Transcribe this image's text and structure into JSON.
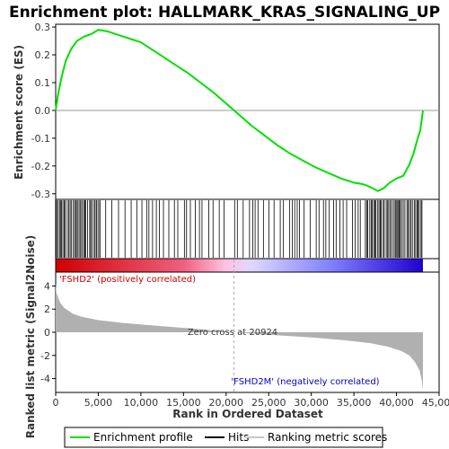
{
  "chart_data": {
    "type": "line",
    "title": "Enrichment plot: HALLMARK_KRAS_SIGNALING_UP",
    "es_panel": {
      "ylabel": "Enrichment score (ES)",
      "ylim": [
        -0.32,
        0.31
      ],
      "yticks": [
        "0.3",
        "0.2",
        "0.1",
        "0.0",
        "-0.1",
        "-0.2",
        "-0.3"
      ],
      "yvalues": [
        0.3,
        0.2,
        0.1,
        0.0,
        -0.1,
        -0.2,
        -0.3
      ],
      "series": [
        {
          "name": "Enrichment profile",
          "color": "#00e000",
          "x": [
            0,
            300,
            700,
            1200,
            1800,
            2500,
            3300,
            4200,
            5000,
            6000,
            7000,
            8000,
            9000,
            10000,
            11000,
            12500,
            14000,
            15500,
            17000,
            18500,
            20000,
            21500,
            23000,
            24500,
            26000,
            27500,
            29000,
            30500,
            32000,
            33500,
            35000,
            36000,
            36500,
            37200,
            37800,
            38500,
            39200,
            40000,
            40800,
            41500,
            42000,
            42400,
            42800,
            43100
          ],
          "y": [
            0.0,
            0.06,
            0.12,
            0.18,
            0.22,
            0.25,
            0.265,
            0.275,
            0.29,
            0.285,
            0.275,
            0.265,
            0.255,
            0.245,
            0.225,
            0.195,
            0.165,
            0.135,
            0.1,
            0.065,
            0.025,
            -0.015,
            -0.055,
            -0.09,
            -0.125,
            -0.155,
            -0.18,
            -0.205,
            -0.225,
            -0.245,
            -0.26,
            -0.265,
            -0.27,
            -0.28,
            -0.29,
            -0.28,
            -0.26,
            -0.245,
            -0.235,
            -0.195,
            -0.155,
            -0.11,
            -0.07,
            0.0
          ]
        }
      ]
    },
    "x_axis": {
      "label": "Rank in Ordered Dataset",
      "xlim": [
        0,
        45000
      ],
      "ticks": [
        "0",
        "5,000",
        "10,000",
        "15,000",
        "20,000",
        "25,000",
        "30,000",
        "35,000",
        "40,000",
        "45,000"
      ],
      "values": [
        0,
        5000,
        10000,
        15000,
        20000,
        25000,
        30000,
        35000,
        40000,
        45000
      ],
      "dataset_size": 43100
    },
    "metric_panel": {
      "ylabel": "Ranked list metric (Signal2Noise)",
      "ylim": [
        -5.2,
        5.2
      ],
      "yticks": [
        "4",
        "2",
        "0",
        "-2",
        "-4"
      ],
      "yvalues": [
        4,
        2,
        0,
        -2,
        -4
      ],
      "metric_x": [
        0,
        100,
        500,
        1000,
        2000,
        3000,
        5000,
        8000,
        12000,
        16000,
        20924,
        25000,
        30000,
        34000,
        37000,
        39000,
        40500,
        41500,
        42200,
        42700,
        43000,
        43100
      ],
      "metric_y": [
        4.2,
        3.4,
        2.6,
        2.1,
        1.6,
        1.35,
        1.05,
        0.8,
        0.55,
        0.32,
        0.0,
        -0.22,
        -0.45,
        -0.7,
        -0.95,
        -1.25,
        -1.6,
        -2.0,
        -2.6,
        -3.3,
        -4.3,
        -5.0
      ],
      "zero_cross_label": "Zero cross at 20924",
      "zero_cross": 20924,
      "pos_label": "'FSHD2' (positively correlated)",
      "neg_label": "'FSHD2M' (negatively correlated)"
    },
    "hits_panel": {
      "dense_regions": [
        [
          100,
          5200
        ],
        [
          36500,
          43000
        ]
      ],
      "sparse_regions": [
        [
          5200,
          20000
        ],
        [
          21000,
          36500
        ]
      ]
    },
    "legend": {
      "placement": "bottom",
      "items": [
        {
          "label": "Enrichment profile",
          "color": "#00e000"
        },
        {
          "label": "Hits",
          "color": "#000000"
        },
        {
          "label": "Ranking metric scores",
          "color": "#c8c8c8"
        }
      ]
    },
    "colors": {
      "es_line": "#00e000",
      "hit": "#000000",
      "metric_fill": "#b0b0b0",
      "gradient_pos": "#d00000",
      "gradient_mid": "#ffffff",
      "gradient_neg": "#2000d0"
    }
  }
}
